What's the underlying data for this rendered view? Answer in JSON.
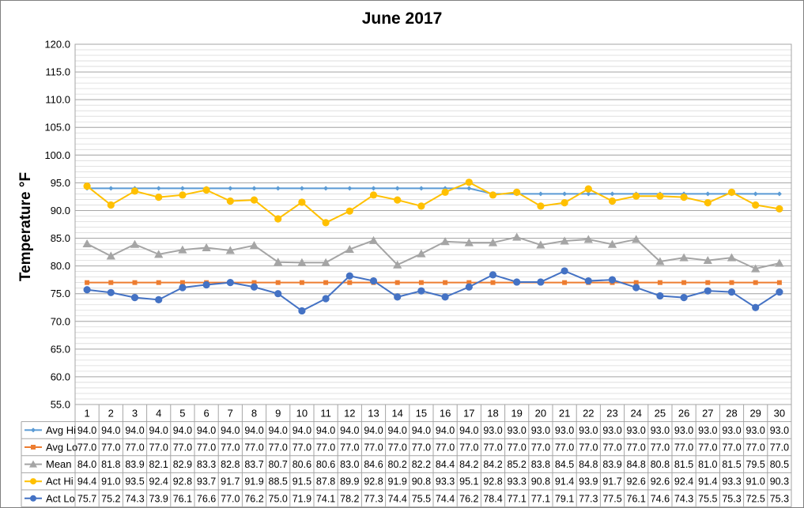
{
  "chart_data": {
    "type": "line",
    "title": "June 2017",
    "ylabel": "Temperature °F",
    "xlabel": "",
    "ylim": [
      55.0,
      120.0
    ],
    "ytick_step": 5.0,
    "minor_grid_step": 1.0,
    "grid": true,
    "legend": "data-table-left",
    "categories": [
      "1",
      "2",
      "3",
      "4",
      "5",
      "6",
      "7",
      "8",
      "9",
      "10",
      "11",
      "12",
      "13",
      "14",
      "15",
      "16",
      "17",
      "18",
      "19",
      "20",
      "21",
      "22",
      "23",
      "24",
      "25",
      "26",
      "27",
      "28",
      "29",
      "30"
    ],
    "series": [
      {
        "name": "Avg Hi",
        "color": "#5b9bd5",
        "marker": "diamond",
        "values": [
          94.0,
          94.0,
          94.0,
          94.0,
          94.0,
          94.0,
          94.0,
          94.0,
          94.0,
          94.0,
          94.0,
          94.0,
          94.0,
          94.0,
          94.0,
          94.0,
          94.0,
          93.0,
          93.0,
          93.0,
          93.0,
          93.0,
          93.0,
          93.0,
          93.0,
          93.0,
          93.0,
          93.0,
          93.0,
          93.0
        ]
      },
      {
        "name": "Avg Lo",
        "color": "#ed7d31",
        "marker": "square",
        "values": [
          77.0,
          77.0,
          77.0,
          77.0,
          77.0,
          77.0,
          77.0,
          77.0,
          77.0,
          77.0,
          77.0,
          77.0,
          77.0,
          77.0,
          77.0,
          77.0,
          77.0,
          77.0,
          77.0,
          77.0,
          77.0,
          77.0,
          77.0,
          77.0,
          77.0,
          77.0,
          77.0,
          77.0,
          77.0,
          77.0
        ]
      },
      {
        "name": "Mean",
        "color": "#a5a5a5",
        "marker": "triangle",
        "values": [
          84.0,
          81.8,
          83.9,
          82.1,
          82.9,
          83.3,
          82.8,
          83.7,
          80.7,
          80.6,
          80.6,
          83.0,
          84.6,
          80.2,
          82.2,
          84.4,
          84.2,
          84.2,
          85.2,
          83.8,
          84.5,
          84.8,
          83.9,
          84.8,
          80.8,
          81.5,
          81.0,
          81.5,
          79.5,
          80.5
        ]
      },
      {
        "name": "Act Hi",
        "color": "#ffc000",
        "marker": "circle",
        "values": [
          94.4,
          91.0,
          93.5,
          92.4,
          92.8,
          93.7,
          91.7,
          91.9,
          88.5,
          91.5,
          87.8,
          89.9,
          92.8,
          91.9,
          90.8,
          93.3,
          95.1,
          92.8,
          93.3,
          90.8,
          91.4,
          93.9,
          91.7,
          92.6,
          92.6,
          92.4,
          91.4,
          93.3,
          91.0,
          90.3
        ]
      },
      {
        "name": "Act Lo",
        "color": "#4472c4",
        "marker": "circle",
        "values": [
          75.7,
          75.2,
          74.3,
          73.9,
          76.1,
          76.6,
          77.0,
          76.2,
          75.0,
          71.9,
          74.1,
          78.2,
          77.3,
          74.4,
          75.5,
          74.4,
          76.2,
          78.4,
          77.1,
          77.1,
          79.1,
          77.3,
          77.5,
          76.1,
          74.6,
          74.3,
          75.5,
          75.3,
          72.5,
          75.3
        ]
      }
    ]
  }
}
